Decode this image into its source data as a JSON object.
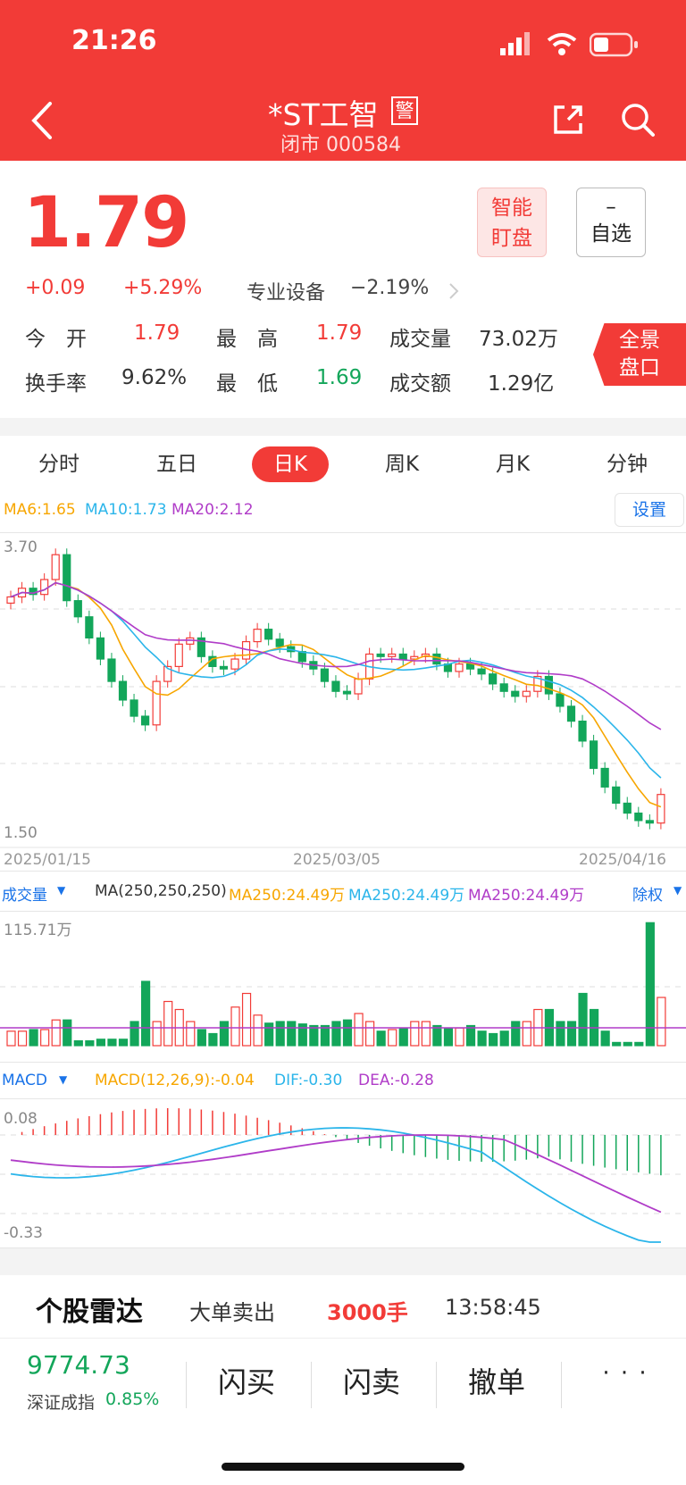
{
  "status_bar": {
    "time": "21:26"
  },
  "header": {
    "title": "*ST工智",
    "warn_badge": "警",
    "subtitle": "闭市 000584"
  },
  "quote": {
    "price": "1.79",
    "change": "+0.09",
    "change_pct": "+5.29%",
    "sector": "专业设备",
    "sector_pct": "−2.19%",
    "smart_btn_line1": "智能",
    "smart_btn_line2": "盯盘",
    "watch_btn_dash": "–",
    "watch_btn_label": "自选",
    "open_label": "今　开",
    "open_value": "1.79",
    "high_label": "最　高",
    "high_value": "1.79",
    "volume_label": "成交量",
    "volume_value": "73.02万",
    "turnover_label": "换手率",
    "turnover_value": "9.62%",
    "low_label": "最　低",
    "low_value": "1.69",
    "amount_label": "成交额",
    "amount_value": "1.29亿",
    "panorama_line1": "全景",
    "panorama_line2": "盘口"
  },
  "tabs": [
    "分时",
    "五日",
    "日K",
    "周K",
    "月K",
    "分钟"
  ],
  "active_tab": 2,
  "kline": {
    "ma6": "MA6:1.65",
    "ma10": "MA10:1.73",
    "ma20": "MA20:2.12",
    "settings": "设置",
    "y_top": "3.70",
    "y_bottom": "1.50",
    "date_start": "2025/01/15",
    "date_mid": "2025/03/05",
    "date_end": "2025/04/16",
    "colors": {
      "up": "#f23b37",
      "down": "#13a65a",
      "ma6": "#f7a600",
      "ma10": "#2bb5ea",
      "ma20": "#b03cc8"
    }
  },
  "volume_panel": {
    "label": "成交量",
    "ma_title": "MA(250,250,250)",
    "ma_a": "MA250:24.49万",
    "ma_b": "MA250:24.49万",
    "ma_c": "MA250:24.49万",
    "adjust": "除权",
    "max_label": "115.71万"
  },
  "macd_panel": {
    "label": "MACD",
    "macd": "MACD(12,26,9):-0.04",
    "dif": "DIF:-0.30",
    "dea": "DEA:-0.28",
    "y_top": "0.08",
    "y_bottom": "-0.33"
  },
  "radar": {
    "title": "个股雷达",
    "event": "大单卖出",
    "amount": "3000手",
    "time": "13:58:45"
  },
  "bottom": {
    "index_value": "9774.73",
    "index_name": "深证成指",
    "index_pct": "0.85%",
    "buy": "闪买",
    "sell": "闪卖",
    "cancel": "撤单",
    "more": "· · ·"
  }
}
